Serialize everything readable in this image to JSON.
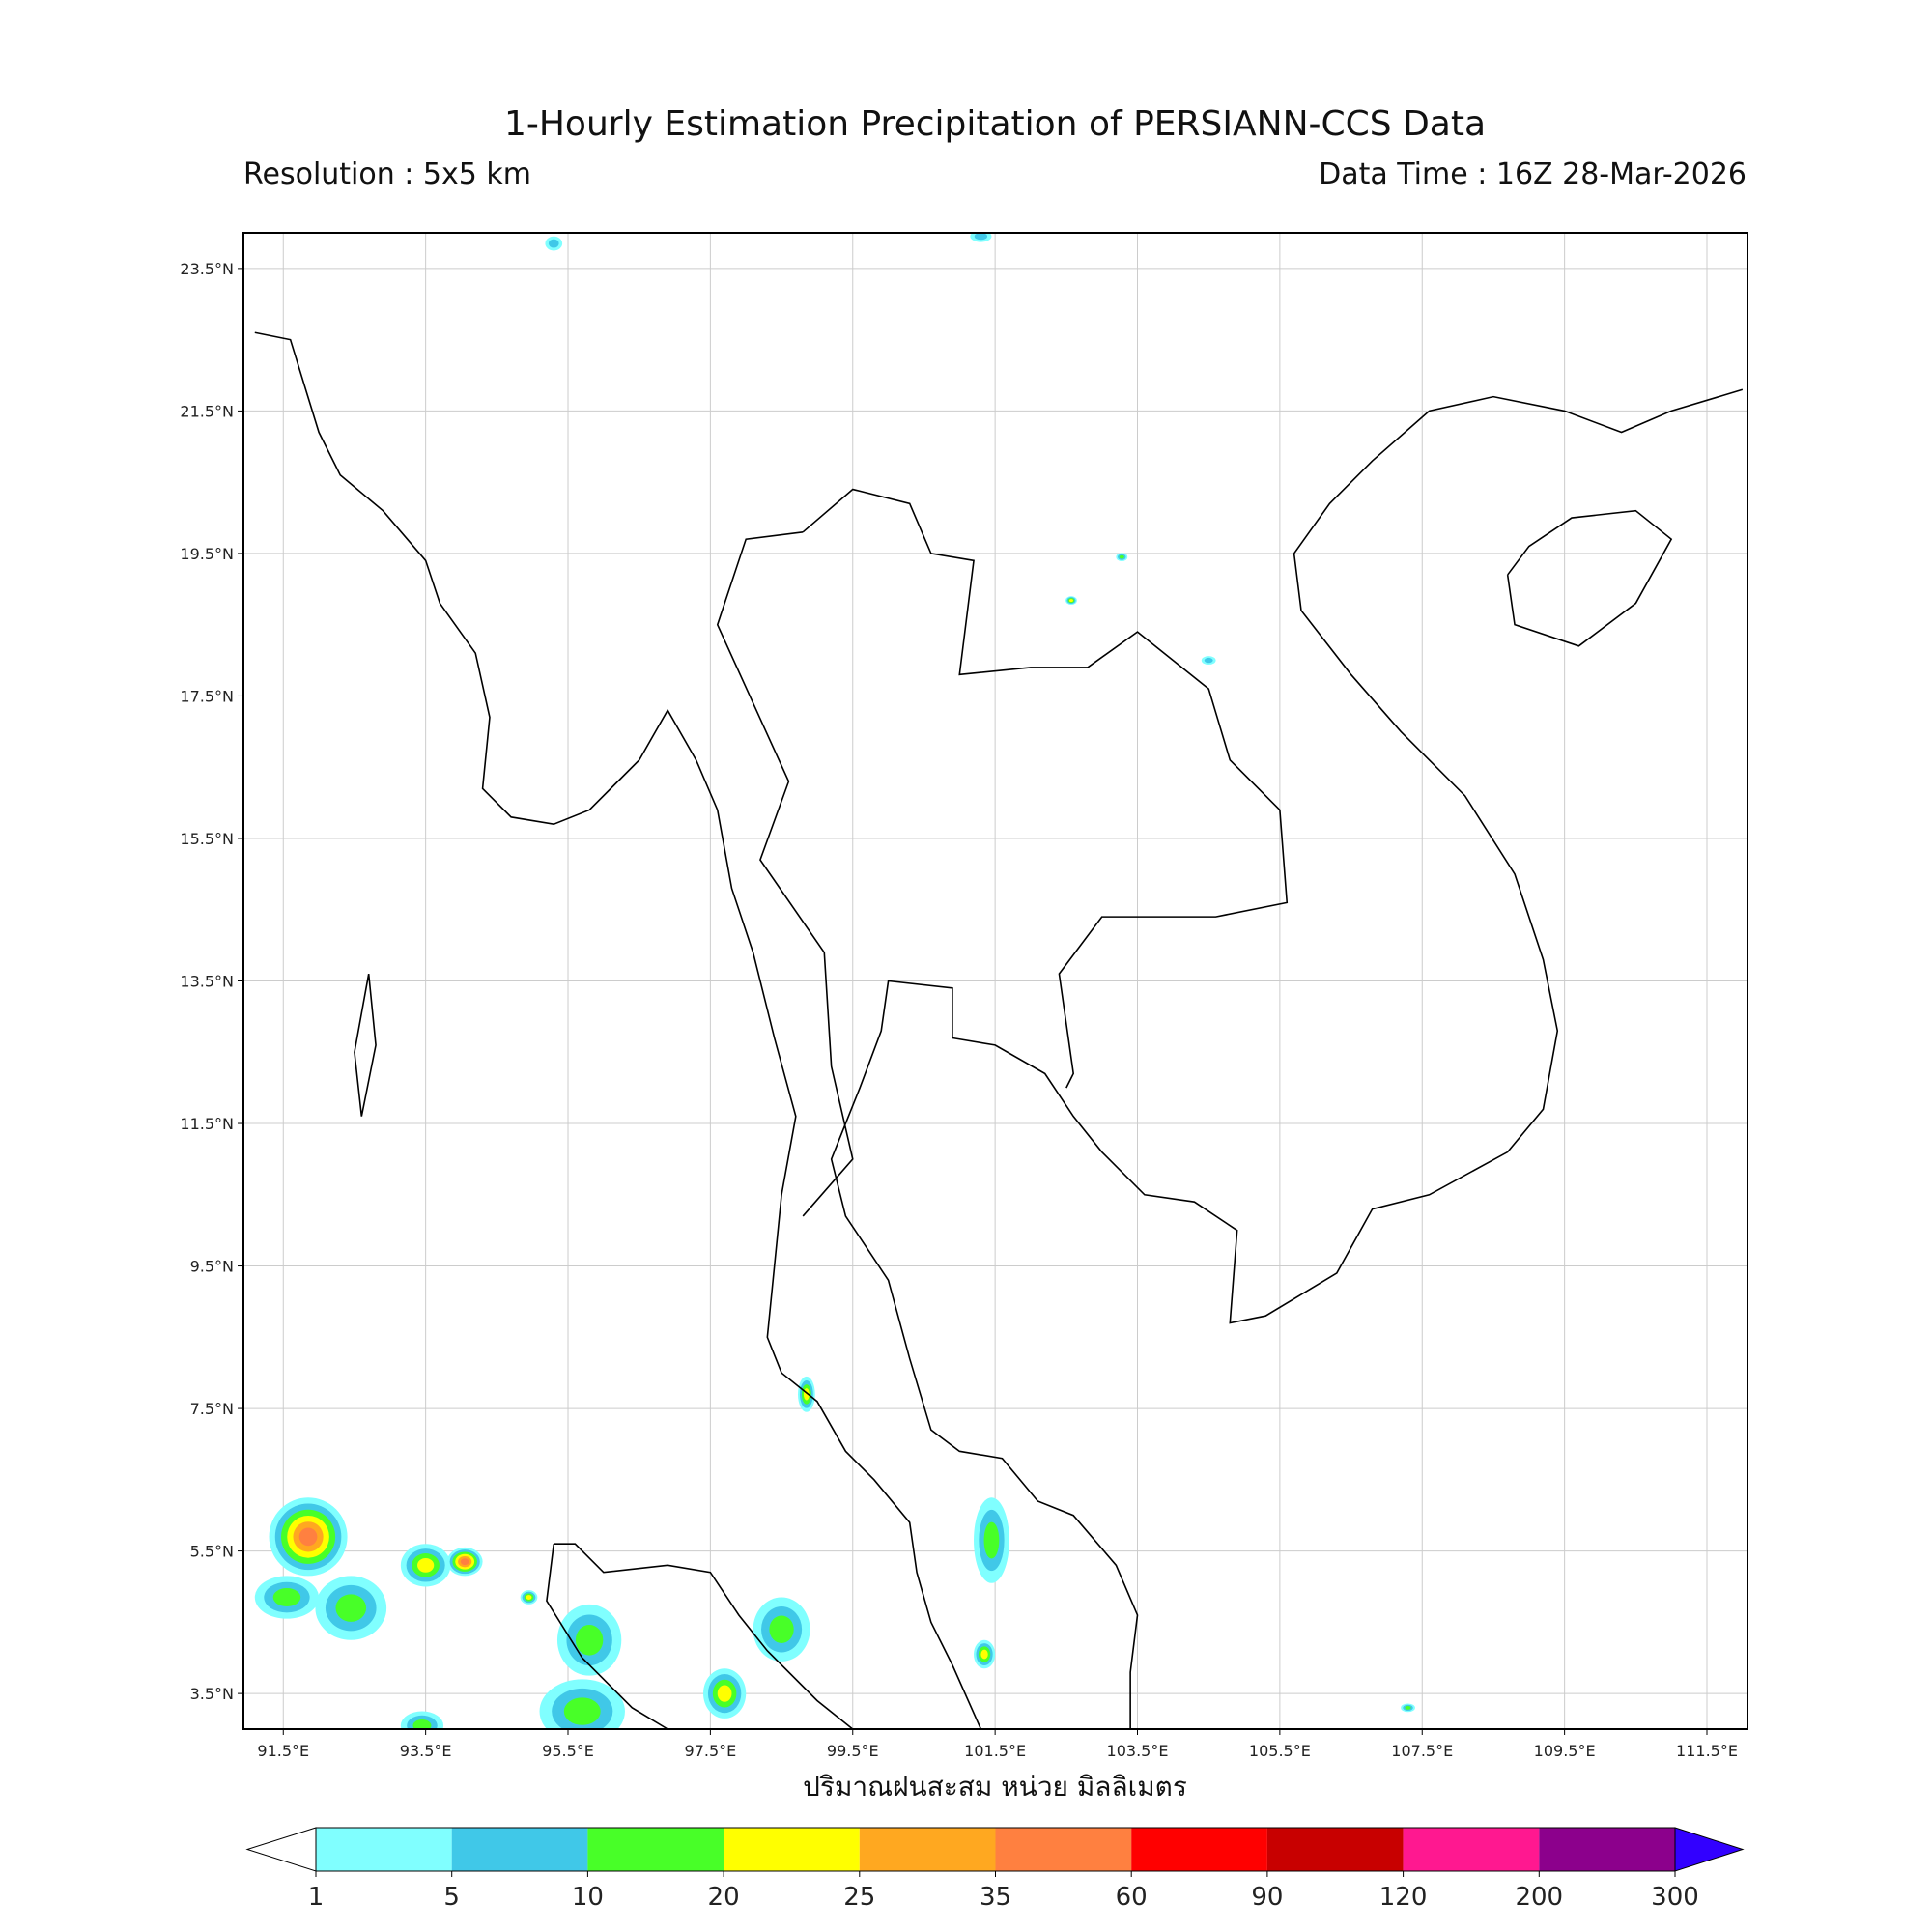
{
  "header": {
    "title": "1-Hourly Estimation Precipitation of PERSIANN-CCS Data",
    "resolution": "Resolution : 5x5 km",
    "data_time": "Data Time : 16Z 28-Mar-2026"
  },
  "map": {
    "extent": {
      "lon_min": 90.94,
      "lon_max": 112.07,
      "lat_min": 3.0,
      "lat_max": 24.0
    },
    "lon_ticks": [
      "91.5°E",
      "93.5°E",
      "95.5°E",
      "97.5°E",
      "99.5°E",
      "101.5°E",
      "103.5°E",
      "105.5°E",
      "107.5°E",
      "109.5°E",
      "111.5°E"
    ],
    "lon_values": [
      91.5,
      93.5,
      95.5,
      97.5,
      99.5,
      101.5,
      103.5,
      105.5,
      107.5,
      109.5,
      111.5
    ],
    "lat_ticks": [
      "23.5°N",
      "21.5°N",
      "19.5°N",
      "17.5°N",
      "15.5°N",
      "13.5°N",
      "11.5°N",
      "9.5°N",
      "7.5°N",
      "5.5°N",
      "3.5°N"
    ],
    "lat_values": [
      23.5,
      21.5,
      19.5,
      17.5,
      15.5,
      13.5,
      11.5,
      9.5,
      7.5,
      5.5,
      3.5
    ],
    "grid": true,
    "rain_cells": [
      {
        "lon": 91.85,
        "lat": 5.7,
        "rlon": 0.55,
        "rlat": 0.55,
        "max_mm": 35
      },
      {
        "lon": 91.55,
        "lat": 4.85,
        "rlon": 0.45,
        "rlat": 0.3,
        "max_mm": 10
      },
      {
        "lon": 92.45,
        "lat": 4.7,
        "rlon": 0.5,
        "rlat": 0.45,
        "max_mm": 10
      },
      {
        "lon": 93.5,
        "lat": 5.3,
        "rlon": 0.35,
        "rlat": 0.3,
        "max_mm": 20
      },
      {
        "lon": 94.05,
        "lat": 5.35,
        "rlon": 0.25,
        "rlat": 0.2,
        "max_mm": 35
      },
      {
        "lon": 95.8,
        "lat": 4.25,
        "rlon": 0.45,
        "rlat": 0.5,
        "max_mm": 10
      },
      {
        "lon": 95.7,
        "lat": 3.25,
        "rlon": 0.6,
        "rlat": 0.45,
        "max_mm": 10
      },
      {
        "lon": 93.45,
        "lat": 3.05,
        "rlon": 0.3,
        "rlat": 0.2,
        "max_mm": 10
      },
      {
        "lon": 97.7,
        "lat": 3.5,
        "rlon": 0.3,
        "rlat": 0.35,
        "max_mm": 20
      },
      {
        "lon": 98.5,
        "lat": 4.4,
        "rlon": 0.4,
        "rlat": 0.45,
        "max_mm": 10
      },
      {
        "lon": 101.45,
        "lat": 5.65,
        "rlon": 0.25,
        "rlat": 0.6,
        "max_mm": 10
      },
      {
        "lon": 101.35,
        "lat": 4.05,
        "rlon": 0.15,
        "rlat": 0.2,
        "max_mm": 20
      },
      {
        "lon": 98.85,
        "lat": 7.7,
        "rlon": 0.12,
        "rlat": 0.25,
        "max_mm": 20
      },
      {
        "lon": 94.95,
        "lat": 4.85,
        "rlon": 0.12,
        "rlat": 0.1,
        "max_mm": 20
      },
      {
        "lon": 102.57,
        "lat": 18.84,
        "rlon": 0.08,
        "rlat": 0.06,
        "max_mm": 20
      },
      {
        "lon": 103.28,
        "lat": 19.45,
        "rlon": 0.08,
        "rlat": 0.06,
        "max_mm": 10
      },
      {
        "lon": 95.3,
        "lat": 23.85,
        "rlon": 0.12,
        "rlat": 0.1,
        "max_mm": 5
      },
      {
        "lon": 101.3,
        "lat": 23.95,
        "rlon": 0.15,
        "rlat": 0.08,
        "max_mm": 5
      },
      {
        "lon": 104.5,
        "lat": 18.0,
        "rlon": 0.1,
        "rlat": 0.06,
        "max_mm": 5
      },
      {
        "lon": 107.3,
        "lat": 3.3,
        "rlon": 0.1,
        "rlat": 0.06,
        "max_mm": 10
      }
    ]
  },
  "xlabel": "ปริมาณฝนสะสม หน่วย มิลลิเมตร",
  "colorbar": {
    "levels": [
      "1",
      "5",
      "10",
      "20",
      "25",
      "35",
      "60",
      "90",
      "120",
      "200",
      "300"
    ],
    "colors": [
      "#80ffff",
      "#40c8e8",
      "#48ff28",
      "#ffff00",
      "#ffa820",
      "#ff8040",
      "#ff0000",
      "#c80000",
      "#ff1890",
      "#8c008c"
    ],
    "under_color": "#ffffff",
    "over_color": "#3200ff"
  }
}
